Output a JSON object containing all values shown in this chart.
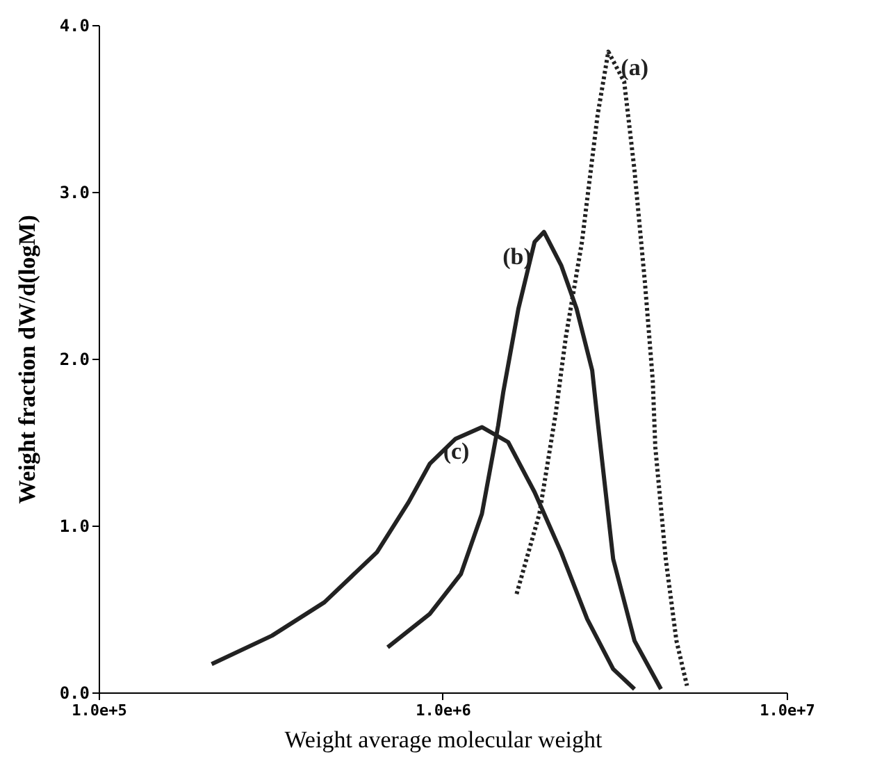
{
  "chart_data": {
    "type": "line",
    "xlabel": "Weight average molecular weight",
    "ylabel": "Weight fraction dW/d(logM)",
    "log": "x",
    "grid": false,
    "legend": false,
    "marker": "none",
    "xlim": [
      100000,
      10000000
    ],
    "xticks": [
      {
        "value": 100000,
        "label": "1.0e+5"
      },
      {
        "value": 1000000,
        "label": "1.0e+6"
      },
      {
        "value": 10000000,
        "label": "1.0e+7"
      }
    ],
    "ylim": [
      0,
      4
    ],
    "yticks": [
      {
        "value": 0,
        "label": "0.0"
      },
      {
        "value": 1,
        "label": "1.0"
      },
      {
        "value": 2,
        "label": "2.0"
      },
      {
        "value": 3,
        "label": "3.0"
      },
      {
        "value": 4,
        "label": "4.0"
      }
    ],
    "series": [
      {
        "name": "(a)",
        "color": "#222222",
        "line_style": "dotted",
        "x": [
          1640000,
          1910000,
          2130000,
          2280000,
          2540000,
          2820000,
          3030000,
          3370000,
          3610000,
          3870000,
          4080000,
          4150000,
          4450000,
          4780000,
          5130000
        ],
        "values": [
          0.59,
          1.07,
          1.67,
          2.13,
          2.7,
          3.46,
          3.84,
          3.66,
          3.13,
          2.46,
          1.87,
          1.47,
          0.8,
          0.31,
          0.04
        ]
      },
      {
        "name": "(b)",
        "color": "#222222",
        "line_style": "solid",
        "x": [
          692000,
          917000,
          1130000,
          1300000,
          1450000,
          1500000,
          1660000,
          1850000,
          1970000,
          2210000,
          2450000,
          2720000,
          2820000,
          3130000,
          3610000,
          4310000
        ],
        "values": [
          0.27,
          0.47,
          0.71,
          1.07,
          1.6,
          1.8,
          2.3,
          2.7,
          2.76,
          2.56,
          2.3,
          1.93,
          1.63,
          0.8,
          0.31,
          0.02
        ]
      },
      {
        "name": "(c)",
        "color": "#222222",
        "line_style": "solid",
        "x": [
          213000,
          319000,
          453000,
          644000,
          796000,
          917000,
          1090000,
          1300000,
          1550000,
          1850000,
          2210000,
          2630000,
          3130000,
          3610000
        ],
        "values": [
          0.17,
          0.34,
          0.54,
          0.84,
          1.14,
          1.37,
          1.52,
          1.59,
          1.5,
          1.2,
          0.84,
          0.44,
          0.14,
          0.02
        ]
      }
    ]
  }
}
